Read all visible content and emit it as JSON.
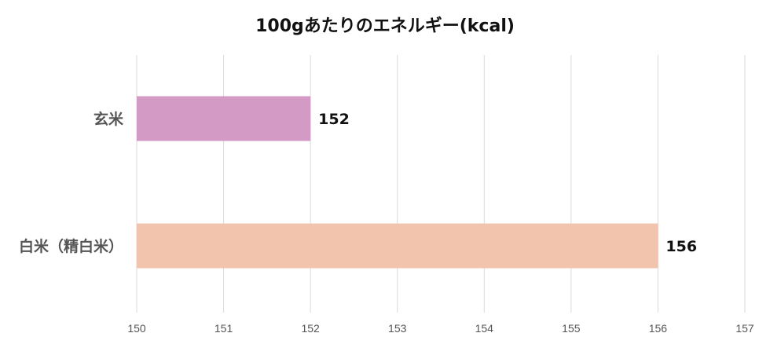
{
  "chart_data": {
    "type": "bar",
    "orientation": "horizontal",
    "title": "100gあたりのエネルギー(kcal)",
    "categories": [
      "玄米",
      "白米（精白米）"
    ],
    "values": [
      152,
      156
    ],
    "value_labels": [
      "152",
      "156"
    ],
    "xlim": [
      150,
      157
    ],
    "x_ticks": [
      "150",
      "151",
      "152",
      "153",
      "154",
      "155",
      "156",
      "157"
    ],
    "bar_colors": [
      "#d39ac5",
      "#f2c3ad"
    ],
    "grid": true,
    "legend": "none"
  }
}
